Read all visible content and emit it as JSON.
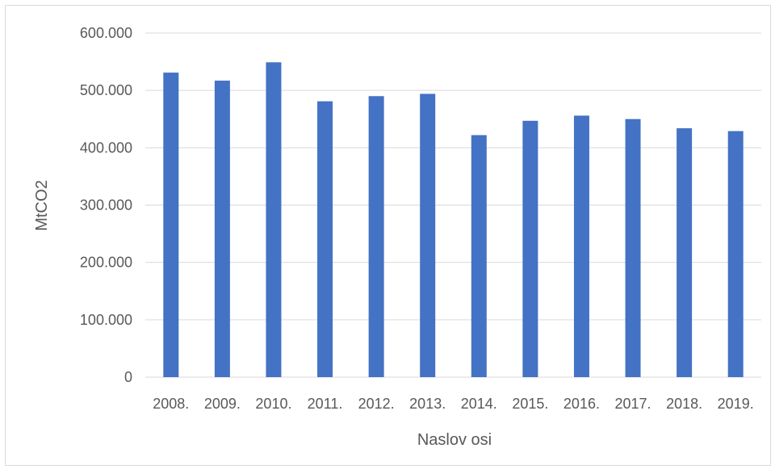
{
  "chart_data": {
    "type": "bar",
    "categories": [
      "2008.",
      "2009.",
      "2010.",
      "2011.",
      "2012.",
      "2013.",
      "2014.",
      "2015.",
      "2016.",
      "2017.",
      "2018.",
      "2019."
    ],
    "values": [
      531000,
      517000,
      549000,
      481000,
      490000,
      494000,
      422000,
      447000,
      456000,
      450000,
      434000,
      429000
    ],
    "xlabel": "Naslov osi",
    "ylabel": "MtCO2",
    "ylim": [
      0,
      600000
    ],
    "yticks": [
      {
        "value": 0,
        "label": "0"
      },
      {
        "value": 100000,
        "label": "100.000"
      },
      {
        "value": 200000,
        "label": "200.000"
      },
      {
        "value": 300000,
        "label": "300.000"
      },
      {
        "value": 400000,
        "label": "400.000"
      },
      {
        "value": 500000,
        "label": "500.000"
      },
      {
        "value": 600000,
        "label": "600.000"
      }
    ],
    "grid": true,
    "bar_color": "#4472c4",
    "grid_color": "#d9d9d9"
  }
}
